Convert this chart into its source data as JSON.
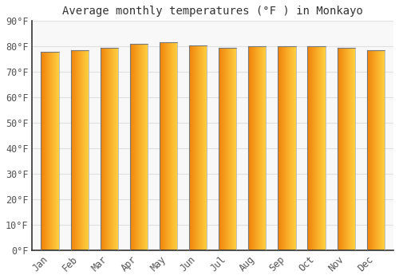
{
  "title": "Average monthly temperatures (°F ) in Monkayo",
  "months": [
    "Jan",
    "Feb",
    "Mar",
    "Apr",
    "May",
    "Jun",
    "Jul",
    "Aug",
    "Sep",
    "Oct",
    "Nov",
    "Dec"
  ],
  "values": [
    78,
    78.5,
    79.5,
    81,
    81.5,
    80.5,
    79.5,
    80,
    80,
    80,
    79.5,
    78.5
  ],
  "ylim": [
    0,
    90
  ],
  "yticks": [
    0,
    10,
    20,
    30,
    40,
    50,
    60,
    70,
    80,
    90
  ],
  "ytick_labels": [
    "0°F",
    "10°F",
    "20°F",
    "30°F",
    "40°F",
    "50°F",
    "60°F",
    "70°F",
    "80°F",
    "90°F"
  ],
  "bar_color_left": "#F0820A",
  "bar_color_right": "#FFD040",
  "bar_edge_color": "#888888",
  "background_color": "#FFFFFF",
  "plot_bg_color": "#F8F8F8",
  "grid_color": "#E0E0E0",
  "title_fontsize": 10,
  "tick_fontsize": 8.5,
  "bar_width": 0.6
}
